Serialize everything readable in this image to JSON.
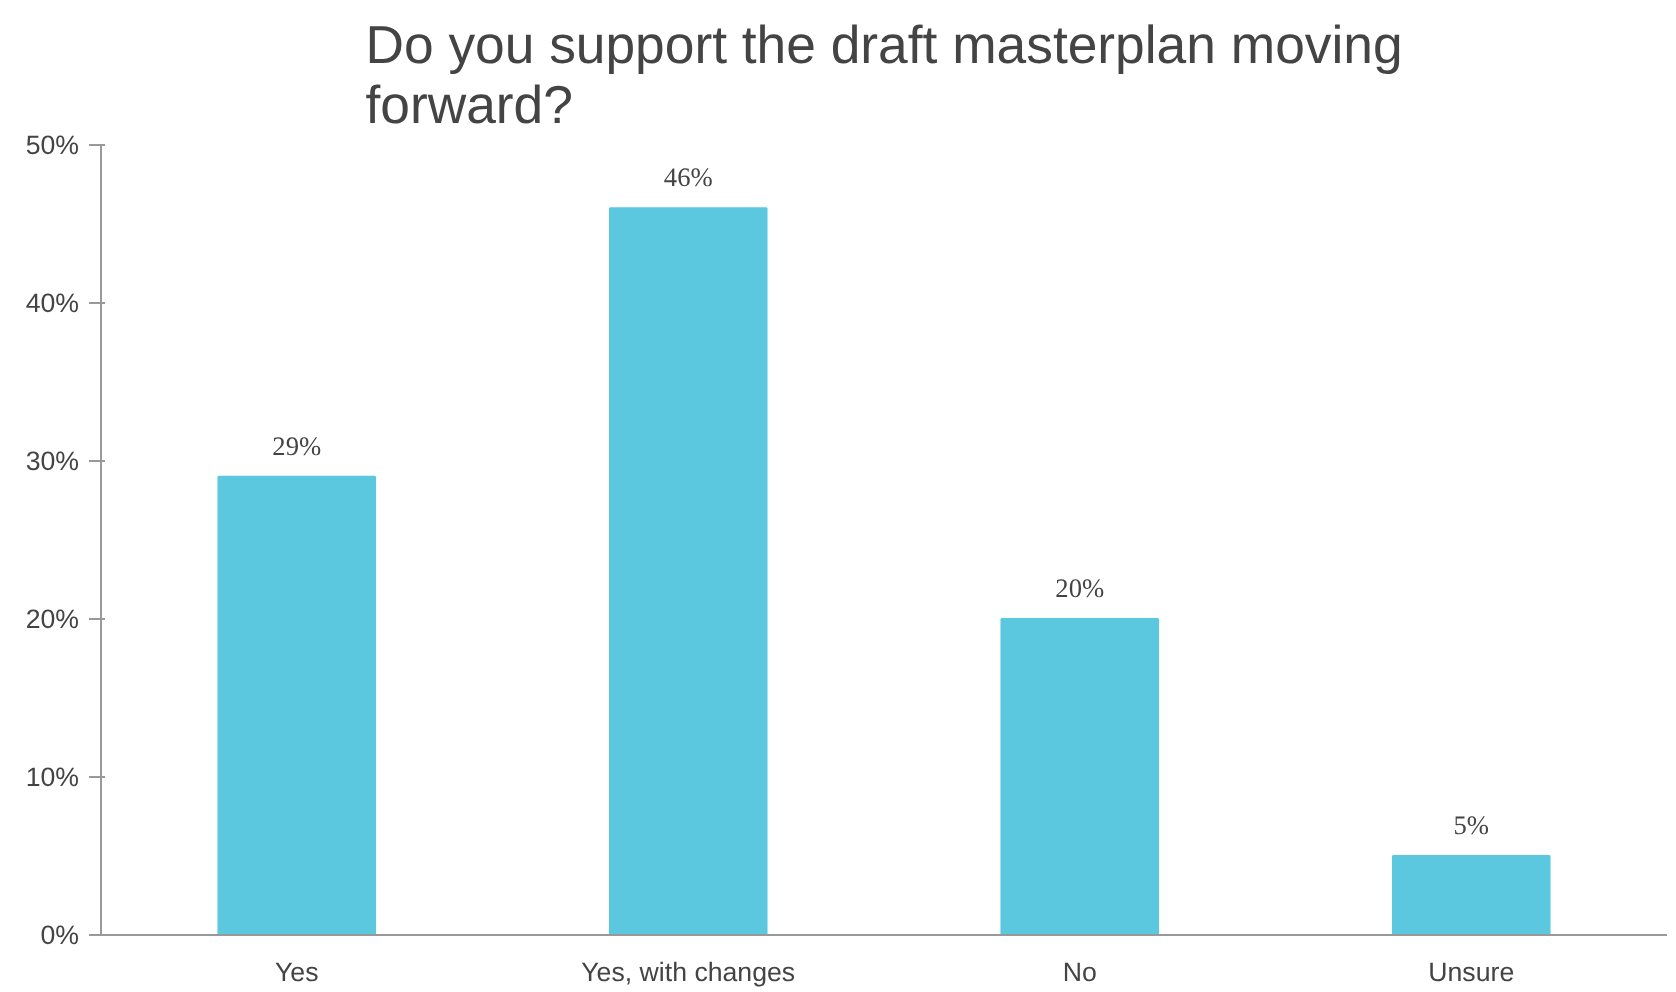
{
  "chart_data": {
    "type": "bar",
    "title": "Do you support the draft masterplan moving forward?",
    "categories": [
      "Yes",
      "Yes, with changes",
      "No",
      "Unsure"
    ],
    "values": [
      29,
      46,
      20,
      5
    ],
    "value_labels": [
      "29%",
      "46%",
      "20%",
      "5%"
    ],
    "color": "#5bc8e0",
    "ylim": [
      0,
      50
    ],
    "yticks": [
      {
        "value": 0,
        "label": "0%"
      },
      {
        "value": 10,
        "label": "10%"
      },
      {
        "value": 20,
        "label": "20%"
      },
      {
        "value": 30,
        "label": "30%"
      },
      {
        "value": 40,
        "label": "40%"
      },
      {
        "value": 50,
        "label": "50%"
      }
    ],
    "grid": false
  }
}
